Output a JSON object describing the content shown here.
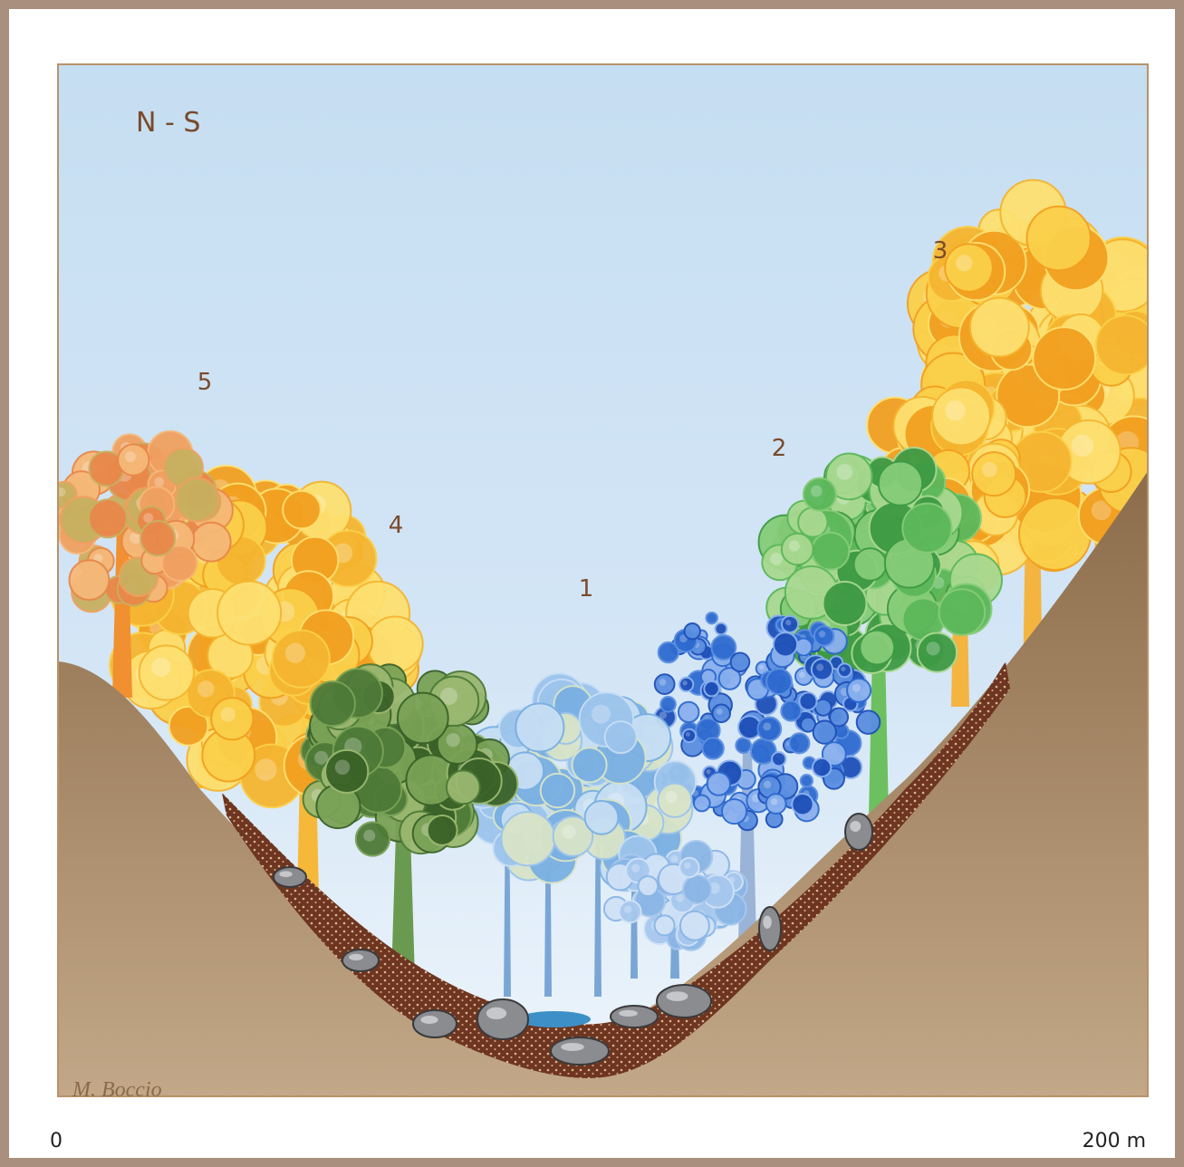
{
  "title": "N - S",
  "zones": [
    "1",
    "2",
    "3",
    "4",
    "5"
  ],
  "credit": "M. Boccio",
  "scale": {
    "start": "0",
    "end": "200 m"
  }
}
